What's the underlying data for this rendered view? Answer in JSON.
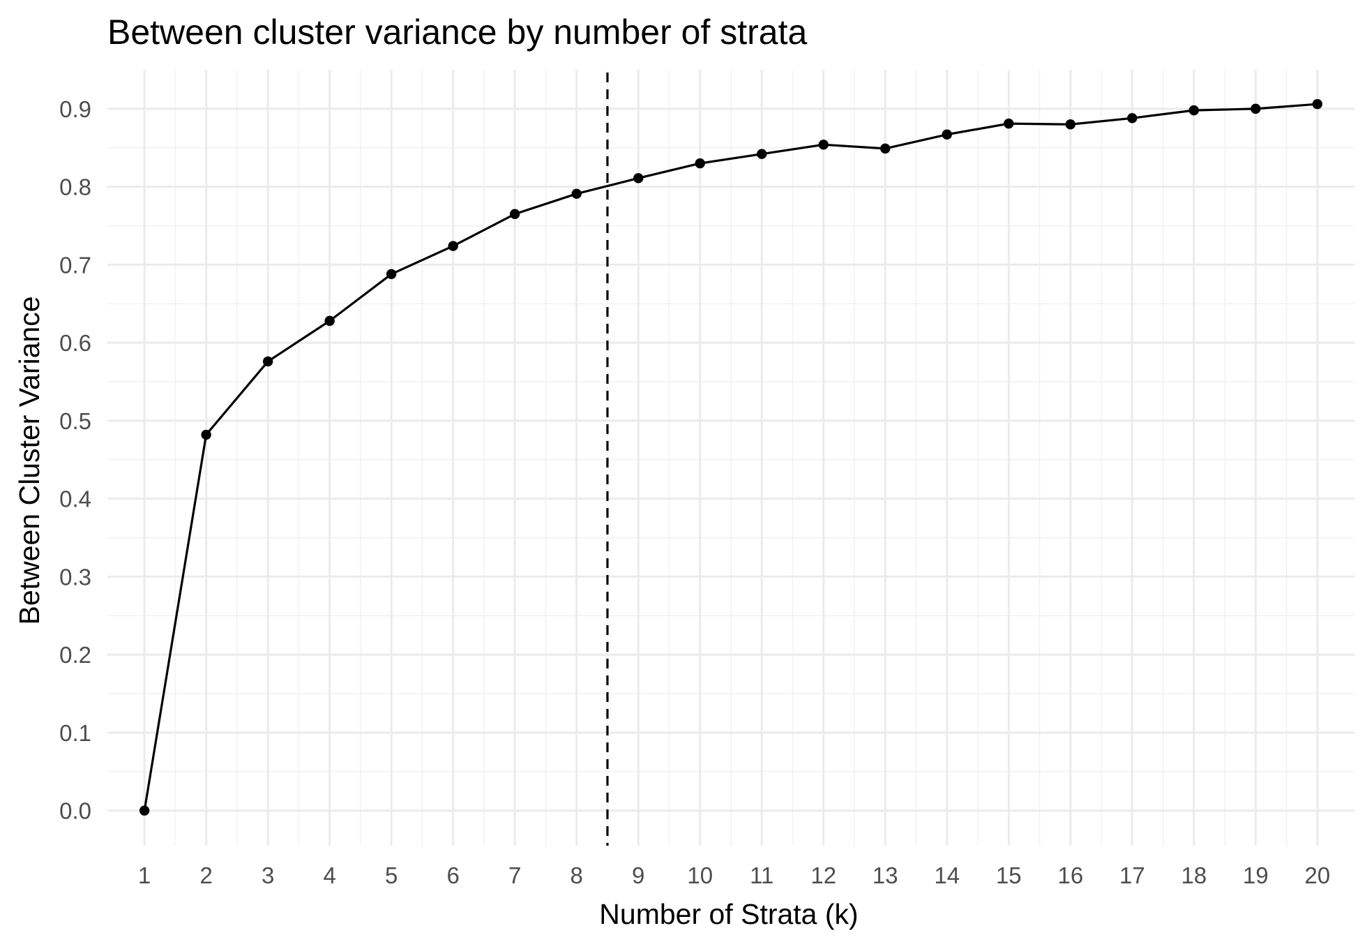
{
  "chart_data": {
    "type": "line",
    "title": "Between cluster variance by number of strata",
    "xlabel": "Number of Strata (k)",
    "ylabel": "Between Cluster Variance",
    "x": [
      1,
      2,
      3,
      4,
      5,
      6,
      7,
      8,
      9,
      10,
      11,
      12,
      13,
      14,
      15,
      16,
      17,
      18,
      19,
      20
    ],
    "series": [
      {
        "values": [
          0.0,
          0.482,
          0.576,
          0.628,
          0.688,
          0.724,
          0.765,
          0.791,
          0.811,
          0.83,
          0.842,
          0.854,
          0.849,
          0.867,
          0.881,
          0.88,
          0.888,
          0.898,
          0.9,
          0.906
        ],
        "color": "#000000"
      }
    ],
    "xticks": [
      "1",
      "2",
      "3",
      "4",
      "5",
      "6",
      "7",
      "8",
      "9",
      "10",
      "11",
      "12",
      "13",
      "14",
      "15",
      "16",
      "17",
      "18",
      "19",
      "20"
    ],
    "yticks": [
      "0.0",
      "0.1",
      "0.2",
      "0.3",
      "0.4",
      "0.5",
      "0.6",
      "0.7",
      "0.8",
      "0.9"
    ],
    "xlim": [
      0.4,
      20.6
    ],
    "ylim": [
      -0.045,
      0.95
    ],
    "reference_line": {
      "x": 8.5,
      "style": "dashed",
      "color": "#000000"
    },
    "grid": true,
    "legend": "none",
    "colors": {
      "grid_major": "#ebebeb",
      "grid_minor": "#f2f2f2",
      "tick_text": "#4d4d4d",
      "line": "#000000"
    }
  }
}
